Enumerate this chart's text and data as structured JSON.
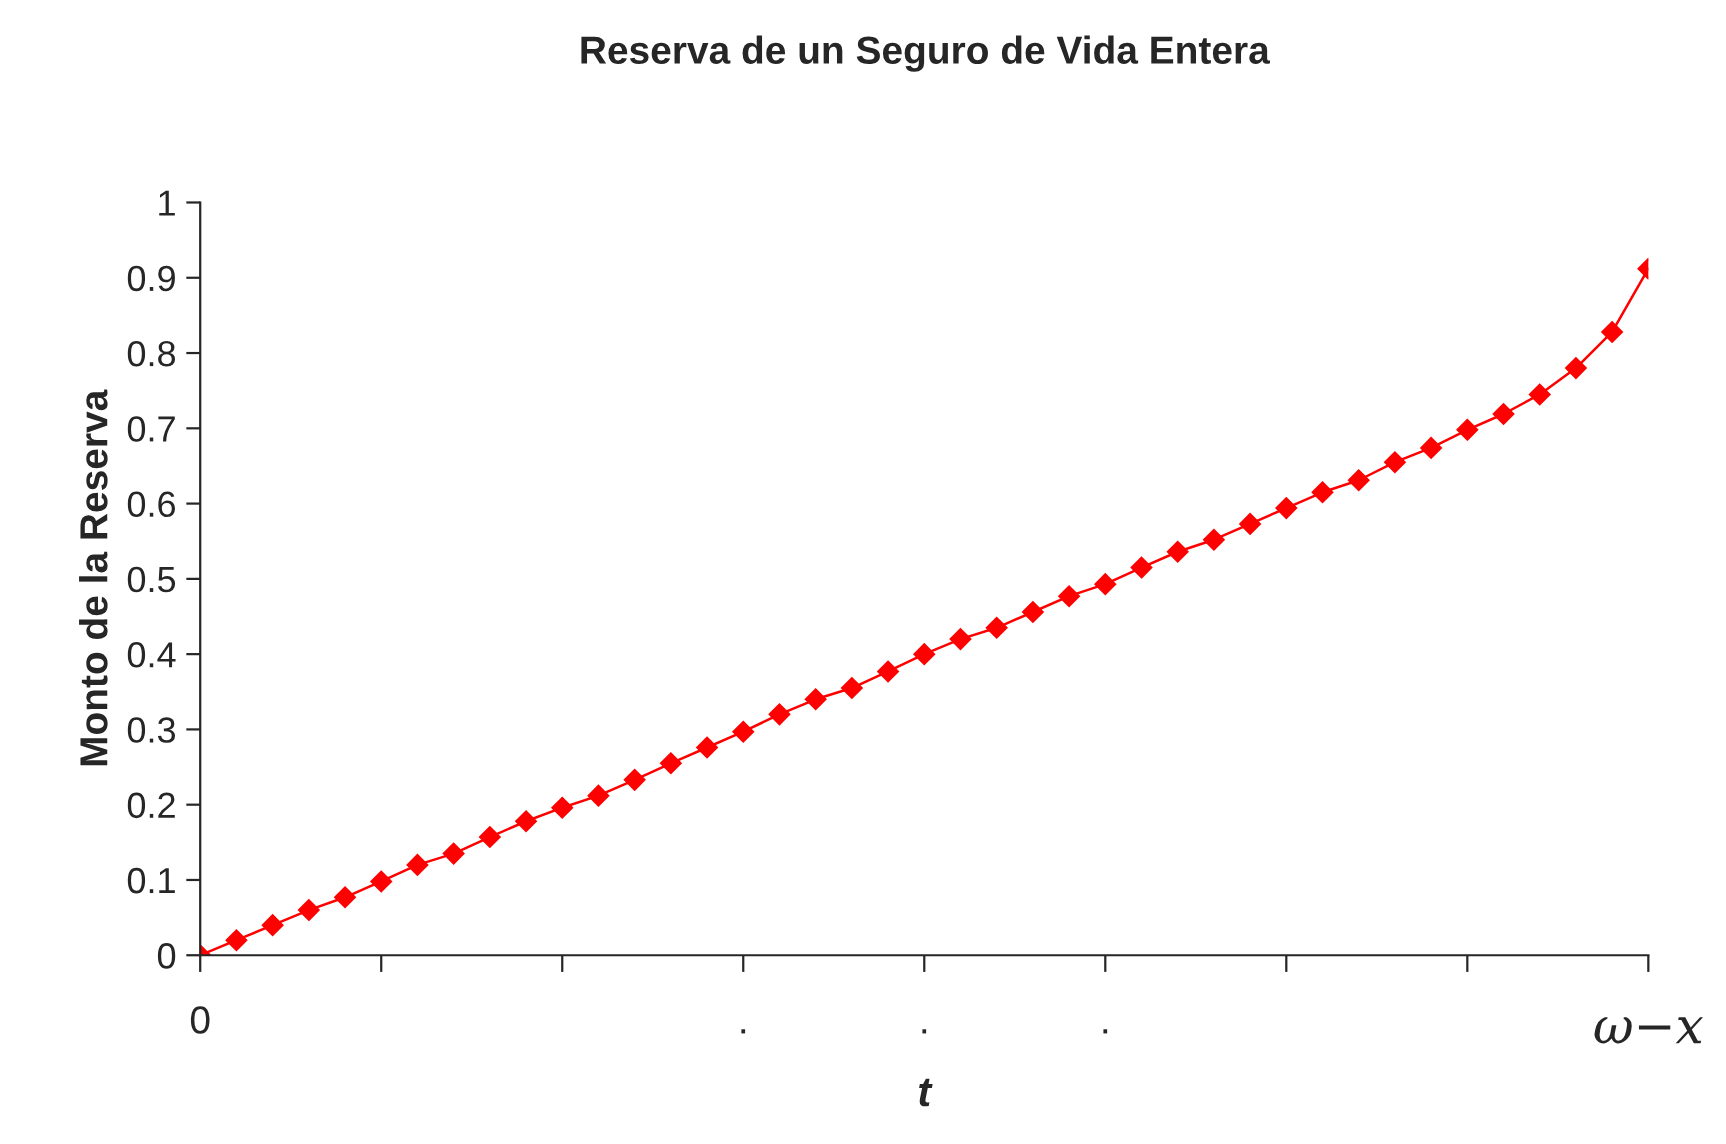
{
  "chart_data": {
    "type": "line",
    "title": "Reserva de un Seguro de Vida Entera",
    "xlabel": "t",
    "ylabel": "Monto de la Reserva",
    "categories": [
      "0",
      null,
      null,
      null,
      null,
      null,
      null,
      null,
      null,
      null,
      null,
      null,
      null,
      null,
      null,
      ".",
      null,
      null,
      null,
      null,
      ".",
      null,
      null,
      null,
      null,
      ".",
      null,
      null,
      null,
      null,
      null,
      null,
      null,
      null,
      null,
      null,
      null,
      null,
      null,
      null,
      "ω−x"
    ],
    "series": [
      {
        "color": "#ff0000",
        "values": [
          0,
          0.02,
          0.04,
          0.06,
          0.077,
          0.098,
          0.12,
          0.135,
          0.157,
          0.178,
          0.196,
          0.212,
          0.233,
          0.255,
          0.276,
          0.297,
          0.32,
          0.34,
          0.355,
          0.377,
          0.4,
          0.42,
          0.435,
          0.456,
          0.477,
          0.493,
          0.515,
          0.536,
          0.552,
          0.573,
          0.594,
          0.615,
          0.631,
          0.655,
          0.674,
          0.698,
          0.719,
          0.745,
          0.78,
          0.828,
          0.912
        ]
      }
    ],
    "ylim": [
      0,
      1
    ],
    "yticks": [
      0,
      0.1,
      0.2,
      0.3,
      0.4,
      0.5,
      0.6,
      0.7,
      0.8,
      0.9,
      1
    ],
    "grid": false,
    "legend": false,
    "marker": "diamond",
    "line_style": "solid"
  }
}
